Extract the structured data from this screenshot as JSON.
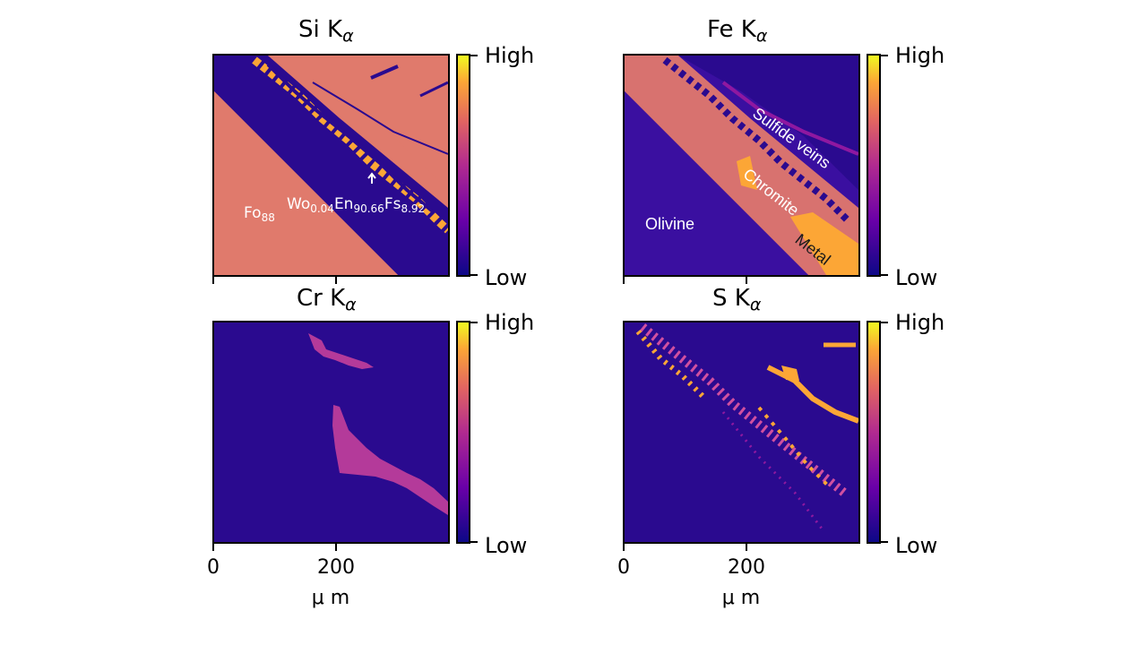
{
  "chart_data": [
    {
      "type": "heatmap",
      "title": "Si",
      "title_sub": "α",
      "colorbar": {
        "top_label": "High",
        "bottom_label": "Low",
        "colormap": "plasma"
      },
      "annotations": {
        "fo": "Fo",
        "fo_sub": "88",
        "wo": "Wo",
        "wo_sub": "0.04",
        "en": "En",
        "en_sub": "90.66",
        "fs": "Fs",
        "fs_sub": "8.92"
      }
    },
    {
      "type": "heatmap",
      "title": "Fe",
      "title_sub": "α",
      "colorbar": {
        "top_label": "High",
        "bottom_label": "Low",
        "colormap": "plasma"
      },
      "annotations": {
        "sulfide": "Sulfide veins",
        "chromite": "Chromite",
        "olivine": "Olivine",
        "metal": "Metal"
      }
    },
    {
      "type": "heatmap",
      "title": "Cr",
      "title_sub": "α",
      "colorbar": {
        "top_label": "High",
        "bottom_label": "Low",
        "colormap": "plasma"
      },
      "xticks": [
        "0",
        "200"
      ],
      "xlabel": "μ m"
    },
    {
      "type": "heatmap",
      "title": "S",
      "title_sub": "α",
      "colorbar": {
        "top_label": "High",
        "bottom_label": "Low",
        "colormap": "plasma"
      },
      "xticks": [
        "0",
        "200"
      ],
      "xlabel": "μ m"
    }
  ],
  "colors": {
    "low": "#0d0887",
    "mid": "#b12a90",
    "salmon": "#e07a6c",
    "orange": "#fca636",
    "high": "#f0f921"
  },
  "letter_k": "K"
}
